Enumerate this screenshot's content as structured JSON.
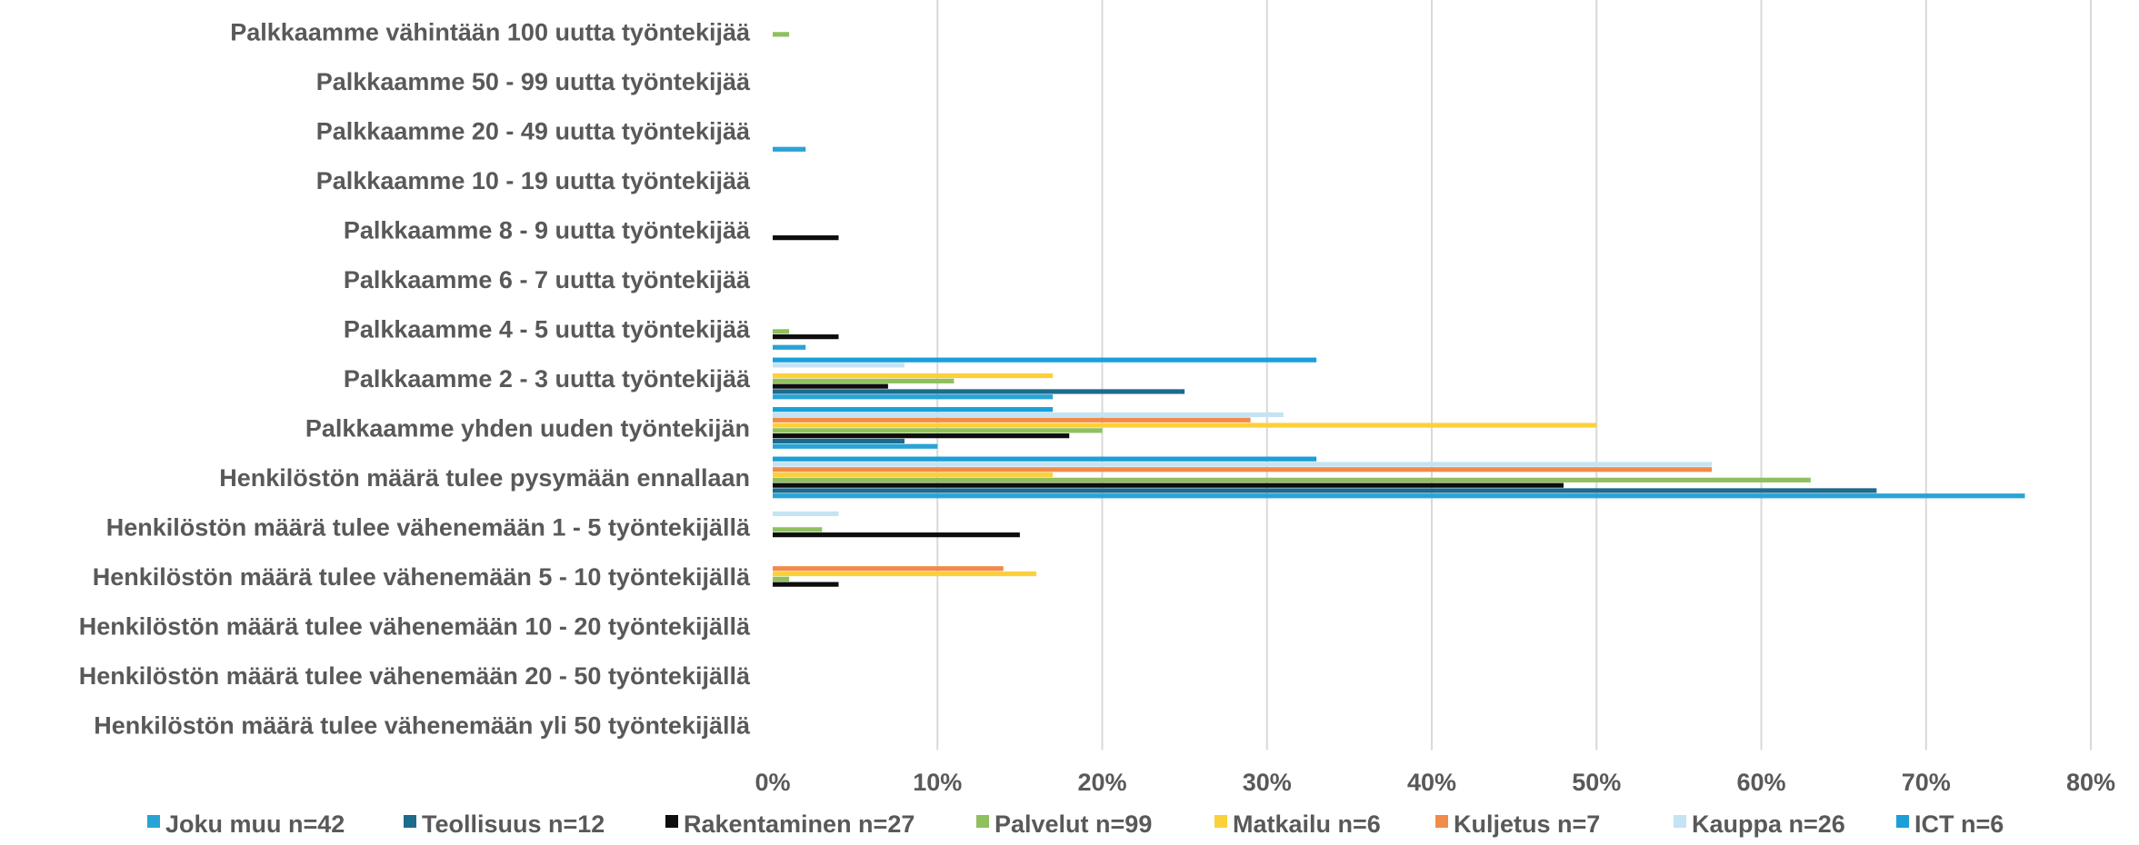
{
  "chart_data": {
    "type": "bar",
    "orientation": "horizontal",
    "categories": [
      "Palkkaamme vähintään 100 uutta työntekijää",
      "Palkkaamme 50 - 99 uutta työntekijää",
      "Palkkaamme 20 - 49 uutta työntekijää",
      "Palkkaamme 10 - 19 uutta työntekijää",
      "Palkkaamme 8 - 9 uutta työntekijää",
      "Palkkaamme 6 - 7 uutta työntekijää",
      "Palkkaamme 4 - 5 uutta työntekijää",
      "Palkkaamme 2 - 3 uutta työntekijää",
      "Palkkaamme yhden uuden työntekijän",
      "Henkilöstön määrä tulee pysymään ennallaan",
      "Henkilöstön määrä tulee vähenemään 1 - 5 työntekijällä",
      "Henkilöstön määrä tulee vähenemään 5 - 10 työntekijällä",
      "Henkilöstön määrä tulee vähenemään 10 - 20 työntekijällä",
      "Henkilöstön määrä tulee vähenemään 20 - 50 työntekijällä",
      "Henkilöstön määrä tulee vähenemään yli 50 työntekijällä"
    ],
    "series": [
      {
        "name": "Joku muu n=42",
        "color": "#29a3d6",
        "values": [
          0,
          0,
          2,
          0,
          0,
          0,
          2,
          17,
          10,
          76,
          0,
          0,
          0,
          0,
          0
        ]
      },
      {
        "name": "Teollisuus n=12",
        "color": "#1d6b8c",
        "values": [
          0,
          0,
          0,
          0,
          0,
          0,
          0,
          25,
          8,
          67,
          0,
          0,
          0,
          0,
          0
        ]
      },
      {
        "name": "Rakentaminen n=27",
        "color": "#0d0d0d",
        "values": [
          0,
          0,
          0,
          0,
          4,
          0,
          4,
          7,
          18,
          48,
          15,
          4,
          0,
          0,
          0
        ]
      },
      {
        "name": "Palvelut n=99",
        "color": "#8fc05e",
        "values": [
          1,
          0,
          0,
          0,
          0,
          0,
          1,
          11,
          20,
          63,
          3,
          1,
          0,
          0,
          0
        ]
      },
      {
        "name": "Matkailu n=6",
        "color": "#fcd03a",
        "values": [
          0,
          0,
          0,
          0,
          0,
          0,
          0,
          17,
          50,
          17,
          0,
          16,
          0,
          0,
          0
        ]
      },
      {
        "name": "Kuljetus n=7",
        "color": "#f08b4a",
        "values": [
          0,
          0,
          0,
          0,
          0,
          0,
          0,
          0,
          29,
          57,
          0,
          14,
          0,
          0,
          0
        ]
      },
      {
        "name": "Kauppa n=26",
        "color": "#c5e3f2",
        "values": [
          0,
          0,
          0,
          0,
          0,
          0,
          0,
          8,
          31,
          57,
          4,
          0,
          0,
          0,
          0
        ]
      },
      {
        "name": "ICT n=6",
        "color": "#1a9fd9",
        "values": [
          0,
          0,
          0,
          0,
          0,
          0,
          0,
          33,
          17,
          33,
          0,
          0,
          0,
          0,
          0
        ]
      }
    ],
    "xlim": [
      0,
      80
    ],
    "x_ticks": [
      "0%",
      "10%",
      "20%",
      "30%",
      "40%",
      "50%",
      "60%",
      "70%",
      "80%"
    ],
    "grid": true,
    "legend_position": "bottom"
  }
}
